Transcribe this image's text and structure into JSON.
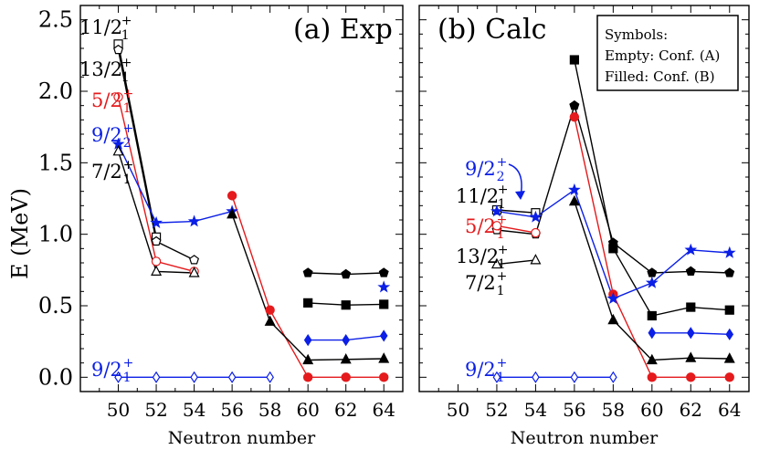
{
  "figure": {
    "ylabel": "E (MeV)",
    "colors": {
      "black": "#000000",
      "red": "#e41a1c",
      "blue": "#0b1fe6"
    }
  },
  "chart_data": [
    {
      "type": "line",
      "title": "(a) Exp",
      "xlabel": "Neutron number",
      "ylabel": "E (MeV)",
      "xlim": [
        48,
        65
      ],
      "ylim": [
        -0.1,
        2.6
      ],
      "xticks": [
        50,
        52,
        54,
        56,
        58,
        60,
        62,
        64
      ],
      "yticks": [
        0.0,
        0.5,
        1.0,
        1.5,
        2.0,
        2.5
      ],
      "ytick_labels": [
        "0.0",
        "0.5",
        "1.0",
        "1.5",
        "2.0",
        "2.5"
      ],
      "series": [
        {
          "name": "11/2_1^+ (A)",
          "color": "black",
          "marker": "square",
          "filled": false,
          "x": [
            50,
            52
          ],
          "y": [
            2.33,
            0.98
          ]
        },
        {
          "name": "13/2_1^+ (A)",
          "color": "black",
          "marker": "pentagon",
          "filled": false,
          "x": [
            50,
            52,
            54
          ],
          "y": [
            2.29,
            0.95,
            0.82
          ]
        },
        {
          "name": "5/2_1^+ (A)",
          "color": "red",
          "marker": "circle",
          "filled": false,
          "x": [
            50,
            52,
            54
          ],
          "y": [
            1.96,
            0.81,
            0.74
          ]
        },
        {
          "name": "5/2_1^+ (B)",
          "color": "red",
          "marker": "circle",
          "filled": true,
          "x": [
            56,
            58,
            60,
            62,
            64
          ],
          "y": [
            1.27,
            0.47,
            0.0,
            0.0,
            0.0
          ]
        },
        {
          "name": "9/2_2^+",
          "color": "blue",
          "marker": "star",
          "filled": true,
          "x": [
            50,
            52,
            54,
            56
          ],
          "y": [
            1.63,
            1.08,
            1.09,
            1.16
          ]
        },
        {
          "name": "9/2_2^+ (64)",
          "color": "blue",
          "marker": "star",
          "filled": true,
          "x": [
            64
          ],
          "y": [
            0.63
          ]
        },
        {
          "name": "7/2_1^+ (A)",
          "color": "black",
          "marker": "triangle",
          "filled": false,
          "x": [
            50,
            52,
            54
          ],
          "y": [
            1.58,
            0.74,
            0.73
          ]
        },
        {
          "name": "7/2_1^+ (B)",
          "color": "black",
          "marker": "triangle",
          "filled": true,
          "x": [
            56,
            58,
            60,
            62,
            64
          ],
          "y": [
            1.14,
            0.39,
            0.12,
            0.125,
            0.13
          ]
        },
        {
          "name": "9/2_1^+ (A)",
          "color": "blue",
          "marker": "diamond",
          "filled": false,
          "x": [
            50,
            52,
            54,
            56,
            58
          ],
          "y": [
            0.0,
            0.0,
            0.0,
            0.0,
            0.0
          ]
        },
        {
          "name": "9/2_1^+ (B)",
          "color": "blue",
          "marker": "diamond",
          "filled": true,
          "x": [
            60,
            62,
            64
          ],
          "y": [
            0.26,
            0.26,
            0.29
          ]
        },
        {
          "name": "13/2_1^+ (B)",
          "color": "black",
          "marker": "pentagon",
          "filled": true,
          "x": [
            60,
            62,
            64
          ],
          "y": [
            0.73,
            0.72,
            0.73
          ]
        },
        {
          "name": "11/2_1^+ (B)",
          "color": "black",
          "marker": "square",
          "filled": true,
          "x": [
            60,
            62,
            64
          ],
          "y": [
            0.52,
            0.505,
            0.51
          ]
        }
      ],
      "labels": [
        {
          "text": "11/2",
          "sub": "1",
          "color": "black"
        },
        {
          "text": "13/2",
          "sub": "1",
          "color": "black"
        },
        {
          "text": "5/2",
          "sub": "1",
          "color": "red"
        },
        {
          "text": "9/2",
          "sub": "2",
          "color": "blue"
        },
        {
          "text": "7/2",
          "sub": "1",
          "color": "black"
        },
        {
          "text": "9/2",
          "sub": "1",
          "color": "blue"
        }
      ]
    },
    {
      "type": "line",
      "title": "(b) Calc",
      "xlabel": "Neutron number",
      "ylabel": "",
      "xlim": [
        48,
        65
      ],
      "ylim": [
        -0.1,
        2.6
      ],
      "xticks": [
        50,
        52,
        54,
        56,
        58,
        60,
        62,
        64
      ],
      "yticks": [
        0.0,
        0.5,
        1.0,
        1.5,
        2.0,
        2.5
      ],
      "ytick_labels": [],
      "legend": {
        "title": "Symbols:",
        "lines": [
          "Empty: Conf. (A)",
          "Filled:  Conf. (B)"
        ],
        "placement": "top-right"
      },
      "series": [
        {
          "name": "11/2_1^+ (A)",
          "color": "black",
          "marker": "square",
          "filled": false,
          "x": [
            52,
            54
          ],
          "y": [
            1.17,
            1.15
          ]
        },
        {
          "name": "11/2_1^+ (B)",
          "color": "black",
          "marker": "square",
          "filled": true,
          "x": [
            56,
            58,
            60,
            62,
            64
          ],
          "y": [
            2.22,
            0.9,
            0.43,
            0.49,
            0.47
          ]
        },
        {
          "name": "13/2_1^+ (A)",
          "color": "black",
          "marker": "pentagon",
          "filled": false,
          "x": [
            52,
            54,
            56
          ],
          "y": [
            1.03,
            1.0,
            1.9
          ]
        },
        {
          "name": "13/2_1^+ (B)",
          "color": "black",
          "marker": "pentagon",
          "filled": true,
          "x": [
            56,
            58,
            60,
            62,
            64
          ],
          "y": [
            1.9,
            0.94,
            0.73,
            0.74,
            0.73
          ]
        },
        {
          "name": "5/2_1^+ (A)",
          "color": "red",
          "marker": "circle",
          "filled": false,
          "x": [
            52,
            54
          ],
          "y": [
            1.06,
            1.01
          ]
        },
        {
          "name": "5/2_1^+ (B)",
          "color": "red",
          "marker": "circle",
          "filled": true,
          "x": [
            56,
            58,
            60,
            62,
            64
          ],
          "y": [
            1.82,
            0.58,
            0.0,
            0.0,
            0.0
          ]
        },
        {
          "name": "9/2_2^+",
          "color": "blue",
          "marker": "star",
          "filled": true,
          "x": [
            52,
            54,
            56,
            58,
            60,
            62,
            64
          ],
          "y": [
            1.16,
            1.12,
            1.31,
            0.55,
            0.66,
            0.89,
            0.87
          ]
        },
        {
          "name": "7/2_1^+ (A)",
          "color": "black",
          "marker": "triangle",
          "filled": false,
          "x": [
            52,
            54
          ],
          "y": [
            0.79,
            0.82
          ]
        },
        {
          "name": "7/2_1^+ (B)",
          "color": "black",
          "marker": "triangle",
          "filled": true,
          "x": [
            56,
            58,
            60,
            62,
            64
          ],
          "y": [
            1.23,
            0.4,
            0.12,
            0.135,
            0.13
          ]
        },
        {
          "name": "9/2_1^+ (A)",
          "color": "blue",
          "marker": "diamond",
          "filled": false,
          "x": [
            52,
            54,
            56,
            58
          ],
          "y": [
            0.0,
            0.0,
            0.0,
            0.0
          ]
        },
        {
          "name": "9/2_1^+ (B)",
          "color": "blue",
          "marker": "diamond",
          "filled": true,
          "x": [
            60,
            62,
            64
          ],
          "y": [
            0.31,
            0.31,
            0.3
          ]
        }
      ],
      "labels": [
        {
          "text": "9/2",
          "sub": "2",
          "color": "blue"
        },
        {
          "text": "11/2",
          "sub": "1",
          "color": "black"
        },
        {
          "text": "5/2",
          "sub": "1",
          "color": "red"
        },
        {
          "text": "13/2",
          "sub": "1",
          "color": "black"
        },
        {
          "text": "7/2",
          "sub": "1",
          "color": "black"
        },
        {
          "text": "9/2",
          "sub": "1",
          "color": "blue"
        }
      ]
    }
  ]
}
